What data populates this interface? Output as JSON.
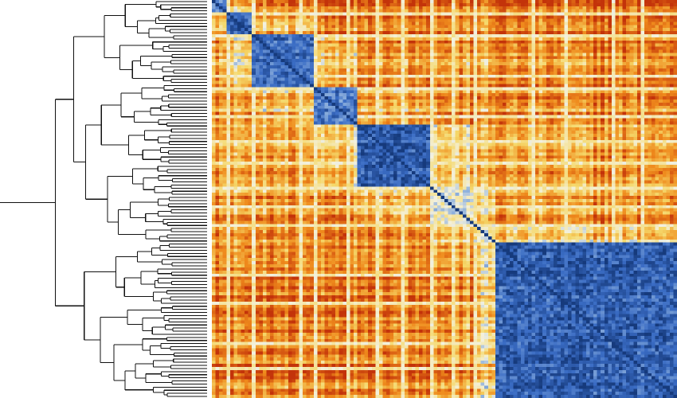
{
  "chart_data": {
    "type": "heatmap",
    "title": "",
    "xlabel": "",
    "ylabel": "",
    "n_rows": 128,
    "n_cols": 128,
    "value_range": [
      0,
      1
    ],
    "color_scale": {
      "low": "#c3330a",
      "mid_low": "#ef8a1c",
      "mid": "#f5d86a",
      "mid_high": "#f3f1df",
      "high_light": "#8fb1dd",
      "high": "#3a6cc4",
      "max": "#163a7c"
    },
    "blocks": [
      {
        "start": 0,
        "end": 4,
        "strength": 0.78
      },
      {
        "start": 4,
        "end": 11,
        "strength": 0.86
      },
      {
        "start": 11,
        "end": 28,
        "strength": 0.84
      },
      {
        "start": 28,
        "end": 40,
        "strength": 0.82
      },
      {
        "start": 40,
        "end": 60,
        "strength": 0.9
      },
      {
        "start": 60,
        "end": 72,
        "strength": 0.55
      },
      {
        "start": 72,
        "end": 78,
        "strength": 0.5
      },
      {
        "start": 78,
        "end": 128,
        "strength": 0.88
      }
    ],
    "bright_lines": [
      4,
      11,
      24,
      28,
      37,
      45,
      52,
      60,
      66,
      72,
      88,
      97,
      110,
      118
    ],
    "dendrogram": {
      "orientation": "left",
      "leaf_count": 128,
      "top_split": {
        "left_leaves": 78,
        "right_leaves": 50
      }
    }
  }
}
